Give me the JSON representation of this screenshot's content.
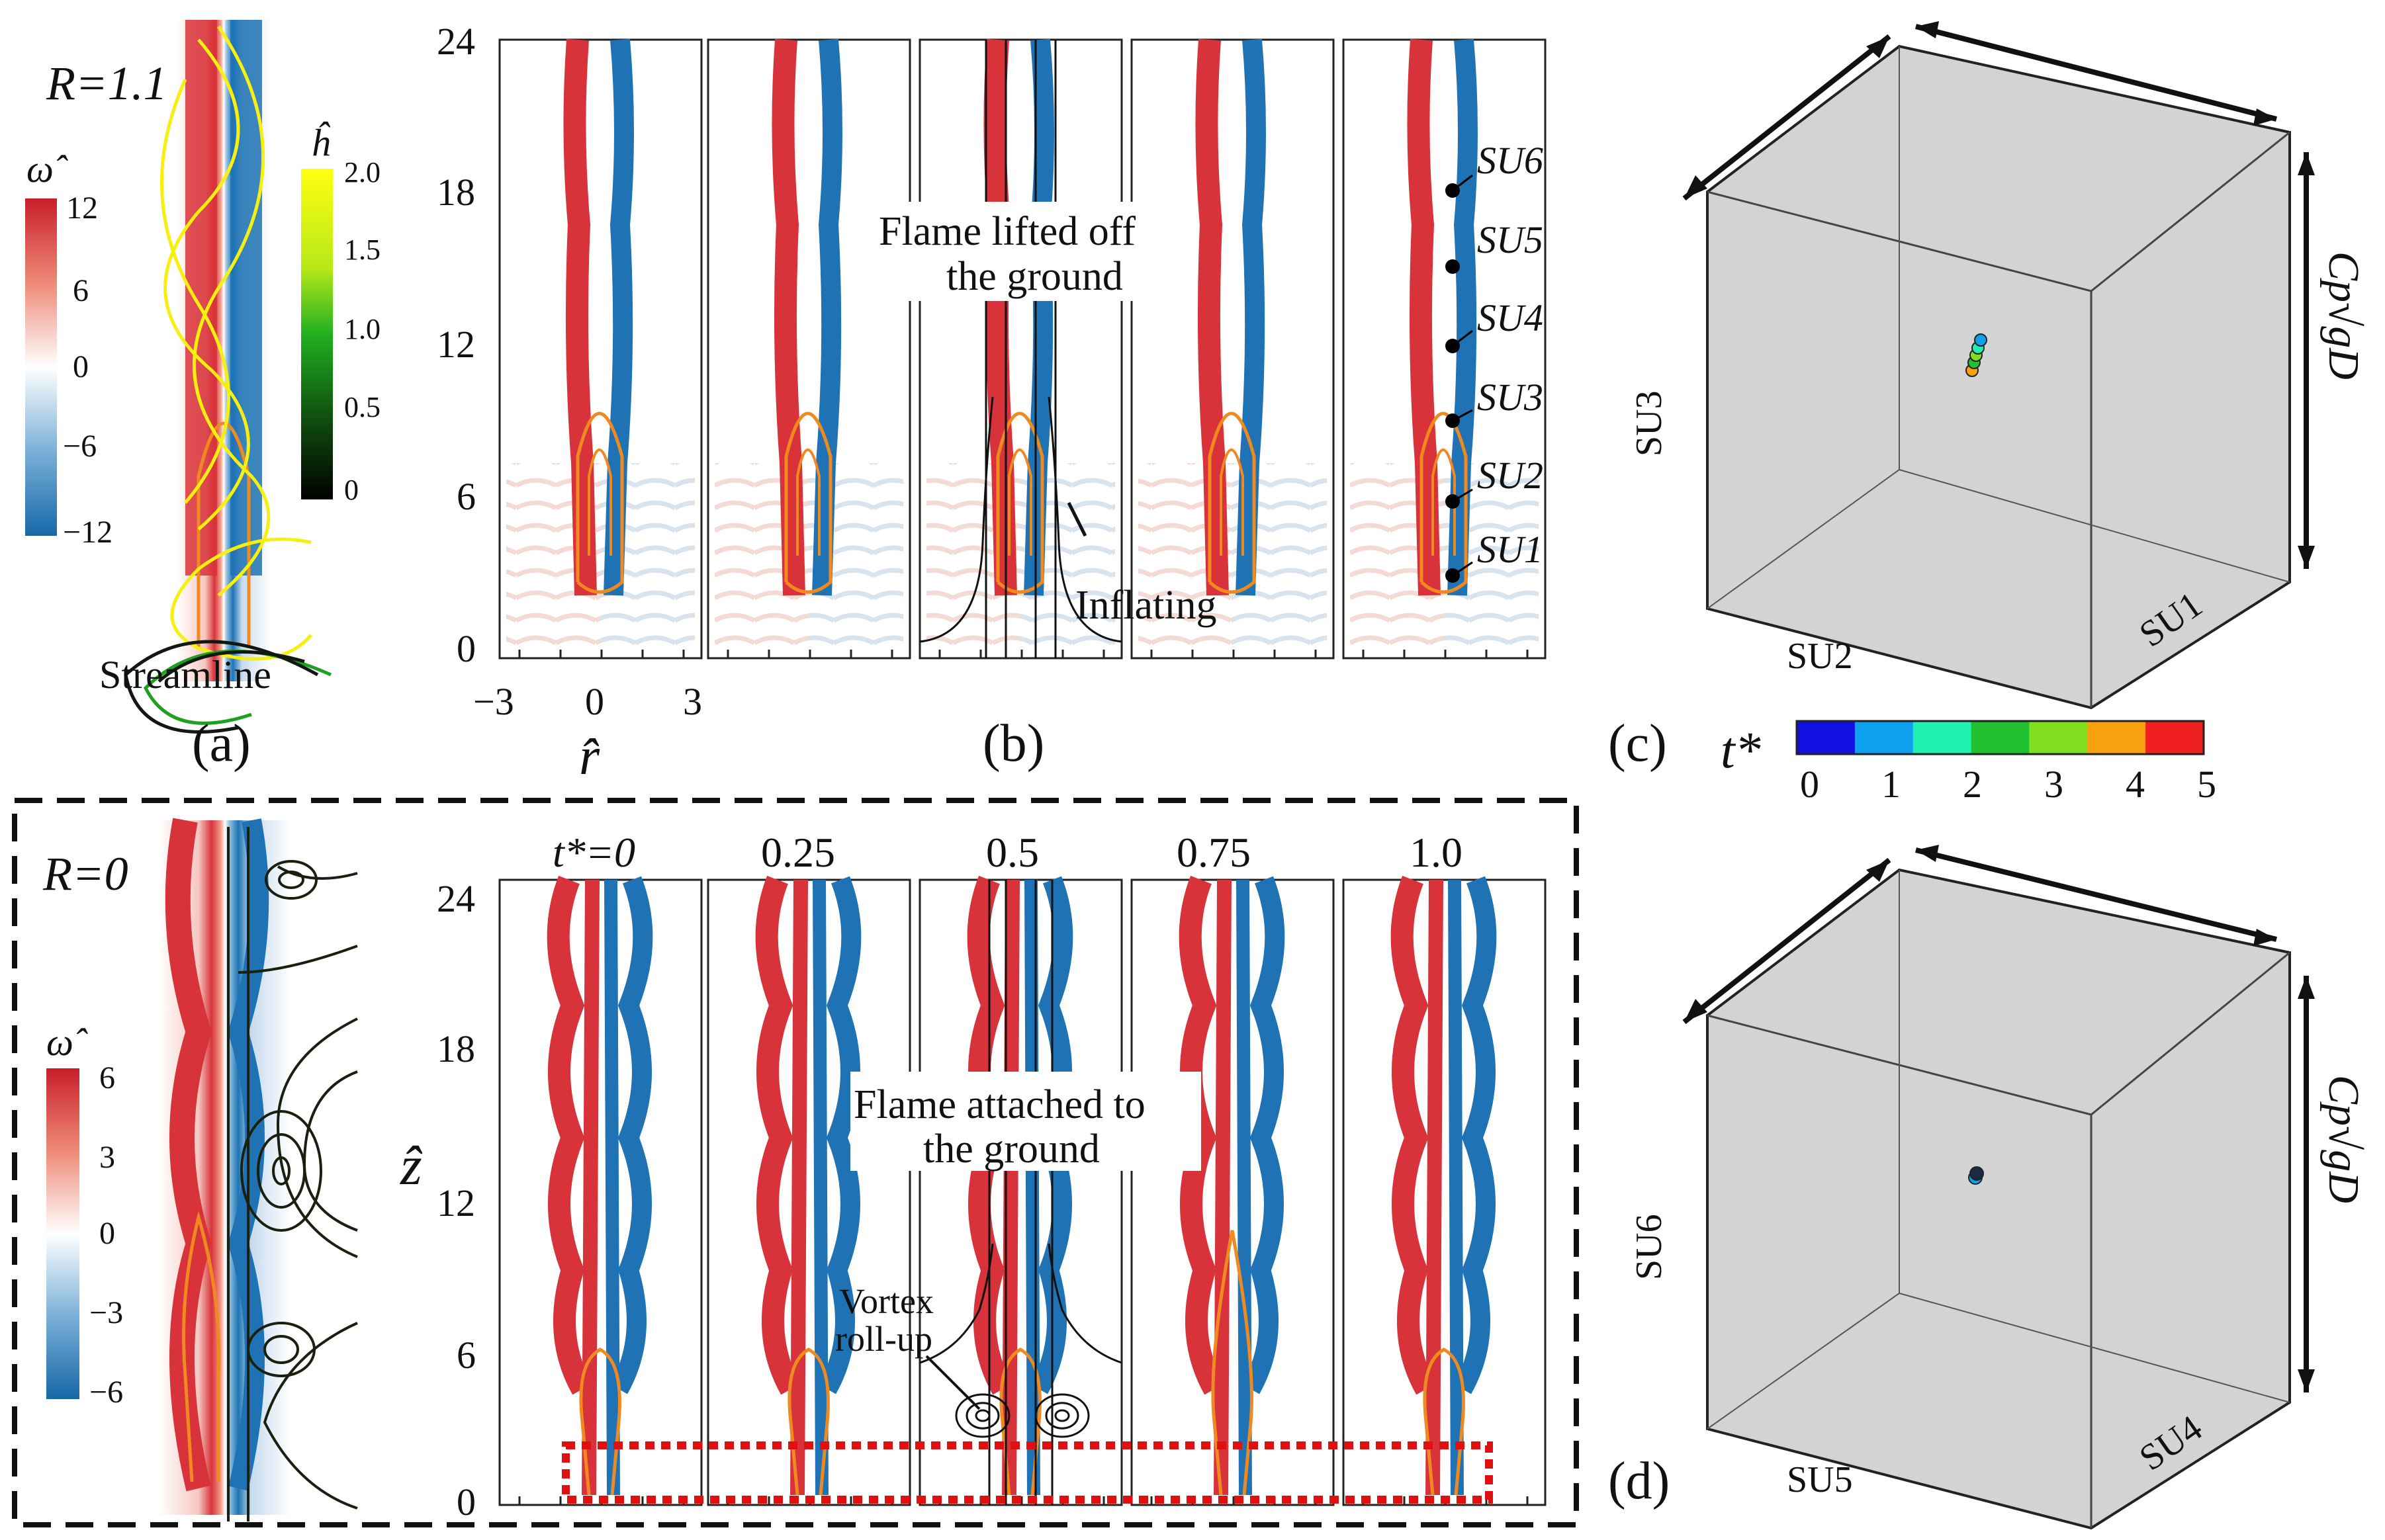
{
  "panel_a": {
    "r_label": "R=1.1",
    "omega_label": "ω̂",
    "omega_ticks": [
      "12",
      "6",
      "0",
      "−6",
      "−12"
    ],
    "h_label": "ĥ",
    "h_ticks": [
      "2.0",
      "1.5",
      "1.0",
      "0.5",
      "0"
    ],
    "streamline_label": "Streamline",
    "caption": "(a)"
  },
  "panel_b": {
    "y_ticks": [
      "24",
      "18",
      "12",
      "6",
      "0"
    ],
    "x_ticks": [
      "−3",
      "0",
      "3"
    ],
    "x_label": "r̂",
    "lifted_text_1": "Flame lifted off",
    "lifted_text_2": "the ground",
    "inflating": "Inflating",
    "probes": [
      "SU6",
      "SU5",
      "SU4",
      "SU3",
      "SU2",
      "SU1"
    ],
    "caption": "(b)"
  },
  "panel_c": {
    "cp_label": "Cp√gD",
    "axis_u3": "SU3",
    "axis_u2": "SU2",
    "axis_u1": "SU1",
    "caption": "(c)"
  },
  "tstar_bar": {
    "label": "t*",
    "ticks": [
      "0",
      "1",
      "2",
      "3",
      "4",
      "5"
    ],
    "colors": [
      "#1010e0",
      "#10a0f0",
      "#20f0b0",
      "#20c030",
      "#80e020",
      "#f8a010",
      "#f02020"
    ]
  },
  "panel_lower": {
    "r_label": "R=0",
    "omega_label": "ω̂",
    "omega_ticks": [
      "6",
      "3",
      "0",
      "−3",
      "−6"
    ],
    "time_labels": [
      "t*=0",
      "0.25",
      "0.5",
      "0.75",
      "1.0"
    ],
    "y_ticks": [
      "24",
      "18",
      "12",
      "6",
      "0"
    ],
    "y_label": "ẑ",
    "attached_text_1": "Flame attached to",
    "attached_text_2": "the ground",
    "vortex_1": "Vortex",
    "vortex_2": "roll-up"
  },
  "panel_d": {
    "cp_label": "Cp√gD",
    "axis_u6": "SU6",
    "axis_u5": "SU5",
    "axis_u4": "SU4",
    "caption": "(d)"
  }
}
